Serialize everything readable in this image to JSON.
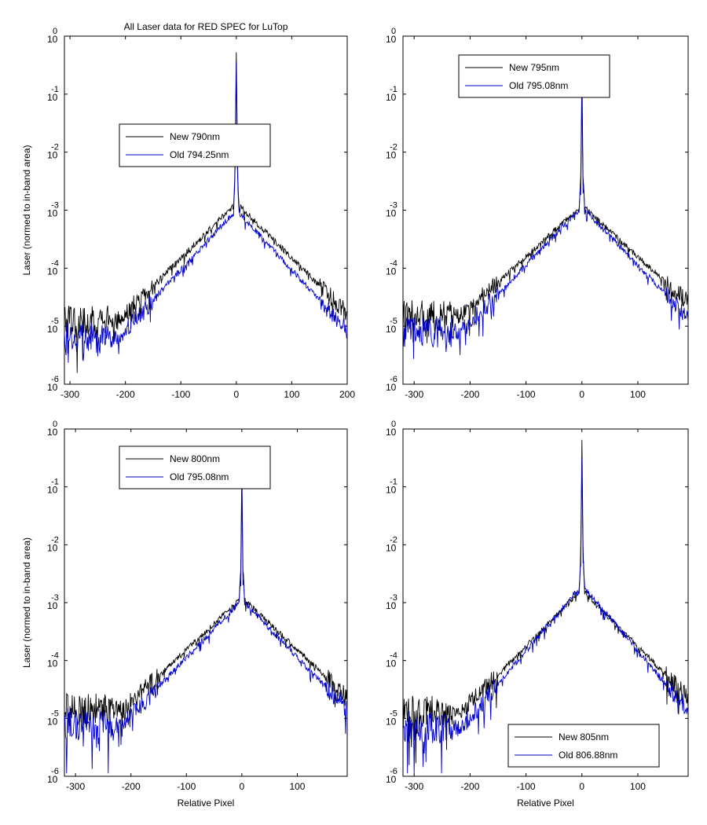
{
  "figure_title": "All Laser data for RED SPEC for LuTop",
  "chart_data": [
    {
      "type": "line",
      "title": "All Laser data for RED SPEC for LuTop",
      "xlabel": "",
      "ylabel": "Laser (normed to in-band area)",
      "y_scale": "log",
      "xlim": [
        -310,
        200
      ],
      "ylim": [
        1e-06,
        1
      ],
      "x_ticks": [
        "-300",
        "-200",
        "-100",
        "0",
        "100",
        "200"
      ],
      "y_ticks": [
        "-6",
        "-5",
        "-4",
        "-3",
        "-2",
        "-1",
        "0"
      ],
      "legend_position": "upper-left-center",
      "series": [
        {
          "name": "New 790nm",
          "color": "#000000",
          "peak": 0.65,
          "shoulder": 0.0012,
          "floor": 1.2e-05
        },
        {
          "name": "Old 794.25nm",
          "color": "#0000c8",
          "peak": 0.35,
          "shoulder": 0.0009,
          "floor": 6e-06
        }
      ]
    },
    {
      "type": "line",
      "title": "",
      "xlabel": "",
      "ylabel": "",
      "y_scale": "log",
      "xlim": [
        -320,
        190
      ],
      "ylim": [
        1e-06,
        1
      ],
      "x_ticks": [
        "-300",
        "-200",
        "-100",
        "0",
        "100"
      ],
      "y_ticks": [
        "-6",
        "-5",
        "-4",
        "-3",
        "-2",
        "-1",
        "0"
      ],
      "legend_position": "top-right-center",
      "series": [
        {
          "name": "New 795nm",
          "color": "#000000",
          "peak": 0.25,
          "shoulder": 0.0011,
          "floor": 1.5e-05
        },
        {
          "name": "Old 795.08nm",
          "color": "#0000c8",
          "peak": 0.12,
          "shoulder": 0.001,
          "floor": 8e-06
        }
      ]
    },
    {
      "type": "line",
      "title": "",
      "xlabel": "Relative Pixel",
      "ylabel": "Laser (normed to in-band area)",
      "y_scale": "log",
      "xlim": [
        -320,
        190
      ],
      "ylim": [
        1e-06,
        1
      ],
      "x_ticks": [
        "-300",
        "-200",
        "-100",
        "0",
        "100"
      ],
      "y_ticks": [
        "-6",
        "-5",
        "-4",
        "-3",
        "-2",
        "-1",
        "0"
      ],
      "legend_position": "top-center",
      "series": [
        {
          "name": "New 800nm",
          "color": "#000000",
          "peak": 0.22,
          "shoulder": 0.0011,
          "floor": 1.4e-05
        },
        {
          "name": "Old 795.08nm",
          "color": "#0000c8",
          "peak": 0.12,
          "shoulder": 0.001,
          "floor": 8e-06
        }
      ]
    },
    {
      "type": "line",
      "title": "",
      "xlabel": "Relative Pixel",
      "ylabel": "",
      "y_scale": "log",
      "xlim": [
        -320,
        190
      ],
      "ylim": [
        1e-06,
        1
      ],
      "x_ticks": [
        "-300",
        "-200",
        "-100",
        "0",
        "100"
      ],
      "y_ticks": [
        "-6",
        "-5",
        "-4",
        "-3",
        "-2",
        "-1",
        "0"
      ],
      "legend_position": "bottom-right",
      "series": [
        {
          "name": "New 805nm",
          "color": "#000000",
          "peak": 0.65,
          "shoulder": 0.0015,
          "floor": 1.3e-05
        },
        {
          "name": "Old 806.88nm",
          "color": "#0000c8",
          "peak": 0.3,
          "shoulder": 0.0018,
          "floor": 7e-06
        }
      ]
    }
  ]
}
